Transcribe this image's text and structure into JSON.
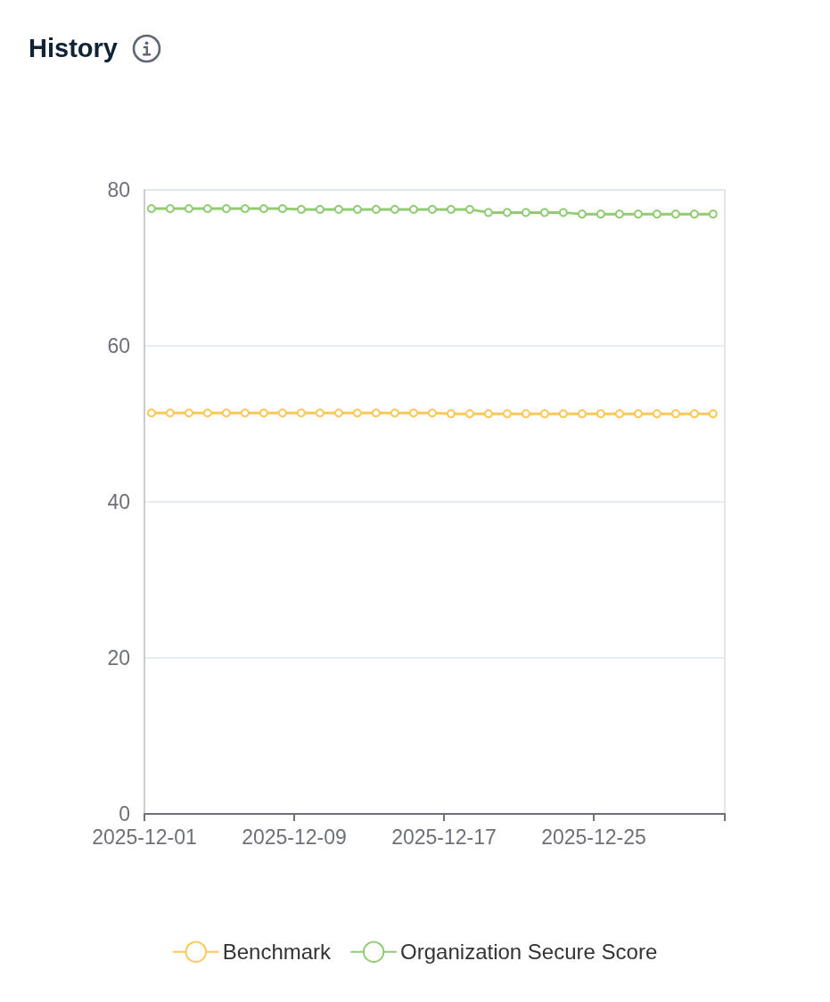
{
  "chart_data": {
    "type": "line",
    "title": "History",
    "x": [
      "2025-12-01T09:00",
      "2025-12-02T09:00",
      "2025-12-03T09:00",
      "2025-12-04T09:00",
      "2025-12-05T09:00",
      "2025-12-06T09:00",
      "2025-12-07T09:00",
      "2025-12-08T09:00",
      "2025-12-09T09:00",
      "2025-12-10T09:00",
      "2025-12-11T09:00",
      "2025-12-12T09:00",
      "2025-12-13T09:00",
      "2025-12-14T09:00",
      "2025-12-15T09:00",
      "2025-12-16T09:00",
      "2025-12-17T09:00",
      "2025-12-18T09:00",
      "2025-12-19T09:00",
      "2025-12-20T09:00",
      "2025-12-21T09:00",
      "2025-12-22T09:00",
      "2025-12-23T09:00",
      "2025-12-24T09:00",
      "2025-12-25T09:00",
      "2025-12-26T09:00",
      "2025-12-27T09:00",
      "2025-12-28T09:00",
      "2025-12-29T09:00",
      "2025-12-30T09:00",
      "2025-12-31T09:00"
    ],
    "series": [
      {
        "name": "Benchmark",
        "color": "#fac858",
        "values": [
          51.4,
          51.4,
          51.4,
          51.4,
          51.4,
          51.4,
          51.4,
          51.4,
          51.4,
          51.4,
          51.4,
          51.4,
          51.4,
          51.4,
          51.4,
          51.4,
          51.3,
          51.3,
          51.3,
          51.3,
          51.3,
          51.3,
          51.3,
          51.3,
          51.3,
          51.3,
          51.3,
          51.3,
          51.3,
          51.3,
          51.3
        ]
      },
      {
        "name": "Organization Secure Score",
        "color": "#91cc75",
        "values": [
          77.6,
          77.6,
          77.6,
          77.6,
          77.6,
          77.6,
          77.6,
          77.6,
          77.5,
          77.5,
          77.5,
          77.5,
          77.5,
          77.5,
          77.5,
          77.5,
          77.5,
          77.5,
          77.1,
          77.1,
          77.1,
          77.1,
          77.1,
          76.9,
          76.9,
          76.9,
          76.9,
          76.9,
          76.9,
          76.9,
          76.9
        ]
      }
    ],
    "xlim": [
      "2025-12-01",
      "2026-01-01"
    ],
    "xticks": [
      "2025-12-01",
      "2025-12-09",
      "2025-12-17",
      "2025-12-25",
      {
        "value": "2026-01-01",
        "label": null
      }
    ],
    "ylim": [
      0,
      80
    ],
    "yticks": [
      0,
      20,
      40,
      60,
      80
    ],
    "grid": "y",
    "legend": "bottom",
    "marker": "circle",
    "line_style": "solid"
  }
}
